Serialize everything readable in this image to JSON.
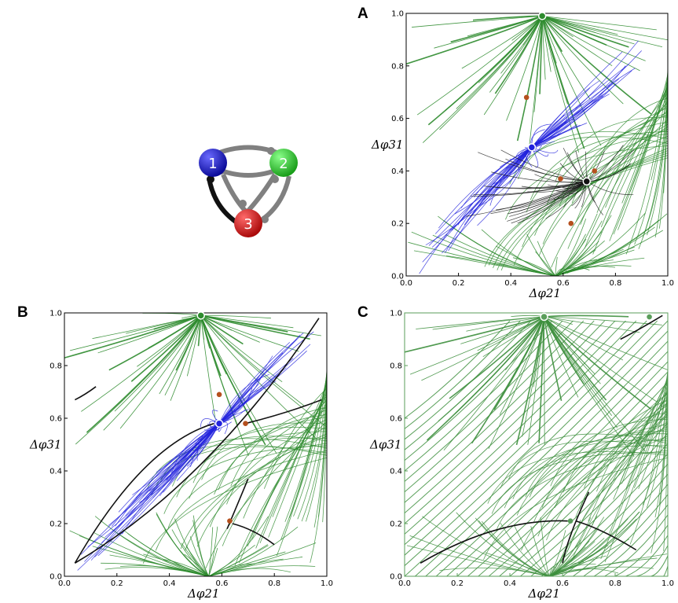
{
  "panels": [
    {
      "letter": "A",
      "xlabel": "Δφ21",
      "ylabel": "Δφ31"
    },
    {
      "letter": "B",
      "xlabel": "Δφ21",
      "ylabel": "Δφ31"
    },
    {
      "letter": "C",
      "xlabel": "Δφ21",
      "ylabel": "Δφ31"
    }
  ],
  "ticks": [
    "0.0",
    "0.2",
    "0.4",
    "0.6",
    "0.8",
    "1.0"
  ],
  "network": {
    "nodes": [
      {
        "label": "1",
        "color": "#1a1acc"
      },
      {
        "label": "2",
        "color": "#2ecc2e"
      },
      {
        "label": "3",
        "color": "#dd1111"
      }
    ]
  },
  "colors": {
    "green": "#2e8b2e",
    "blue": "#2222dd",
    "black": "#111111",
    "orange": "#b5501e"
  },
  "chart_data": [
    {
      "type": "scatter",
      "title": "A",
      "xlabel": "Δφ21",
      "ylabel": "Δφ31",
      "xlim": [
        0,
        1
      ],
      "ylim": [
        0,
        1
      ],
      "fixed_points": [
        {
          "x": 0.52,
          "y": 0.99,
          "kind": "stable",
          "color": "#2e8b2e"
        },
        {
          "x": 0.48,
          "y": 0.49,
          "kind": "stable",
          "color": "#2222dd"
        },
        {
          "x": 0.69,
          "y": 0.36,
          "kind": "stable",
          "color": "#111111"
        },
        {
          "x": 0.46,
          "y": 0.68,
          "kind": "saddle",
          "color": "#b5501e"
        },
        {
          "x": 0.59,
          "y": 0.37,
          "kind": "saddle",
          "color": "#b5501e"
        },
        {
          "x": 0.72,
          "y": 0.4,
          "kind": "saddle",
          "color": "#b5501e"
        },
        {
          "x": 0.63,
          "y": 0.2,
          "kind": "saddle",
          "color": "#b5501e"
        }
      ]
    },
    {
      "type": "scatter",
      "title": "B",
      "xlabel": "Δφ21",
      "ylabel": "Δφ31",
      "xlim": [
        0,
        1
      ],
      "ylim": [
        0,
        1
      ],
      "fixed_points": [
        {
          "x": 0.52,
          "y": 0.99,
          "kind": "stable",
          "color": "#2e8b2e"
        },
        {
          "x": 0.59,
          "y": 0.58,
          "kind": "stable",
          "color": "#2222dd"
        },
        {
          "x": 0.59,
          "y": 0.69,
          "kind": "saddle",
          "color": "#b5501e"
        },
        {
          "x": 0.69,
          "y": 0.58,
          "kind": "saddle",
          "color": "#b5501e"
        },
        {
          "x": 0.63,
          "y": 0.21,
          "kind": "saddle",
          "color": "#b5501e"
        }
      ]
    },
    {
      "type": "scatter",
      "title": "C",
      "xlabel": "Δφ21",
      "ylabel": "Δφ31",
      "xlim": [
        0,
        1
      ],
      "ylim": [
        0,
        1
      ],
      "fixed_points": [
        {
          "x": 0.53,
          "y": 0.985,
          "kind": "stable",
          "color": "#5a9e5a"
        },
        {
          "x": 0.63,
          "y": 0.21,
          "kind": "saddle",
          "color": "#5a9e5a"
        },
        {
          "x": 0.93,
          "y": 0.985,
          "kind": "saddle",
          "color": "#5a9e5a"
        }
      ]
    }
  ]
}
